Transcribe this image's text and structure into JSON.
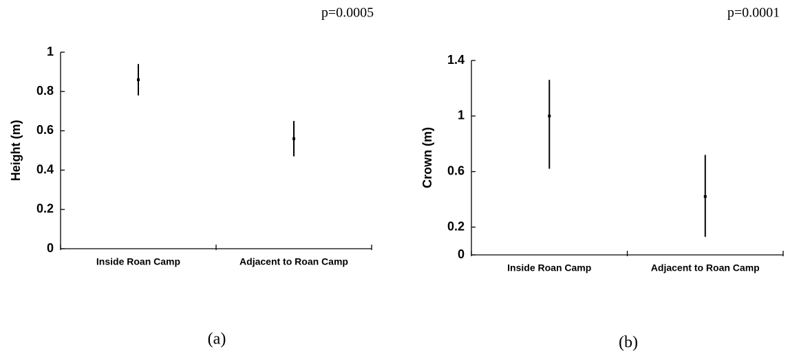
{
  "chart_data": [
    {
      "type": "errorbar",
      "panel_label": "(a)",
      "annotation": "p=0.0005",
      "ylabel": "Height (m)",
      "categories": [
        "Inside Roan Camp",
        "Adjacent to Roan Camp"
      ],
      "series": [
        {
          "color": "#000000",
          "values": [
            0.86,
            0.56
          ],
          "lower": [
            0.78,
            0.47
          ],
          "upper": [
            0.94,
            0.65
          ]
        }
      ],
      "ylim": [
        0,
        1
      ],
      "yticks": [
        0,
        0.2,
        0.4,
        0.6,
        0.8,
        1
      ]
    },
    {
      "type": "errorbar",
      "panel_label": "(b)",
      "annotation": "p=0.0001",
      "ylabel": "Crown (m)",
      "categories": [
        "Inside Roan Camp",
        "Adjacent to Roan Camp"
      ],
      "series": [
        {
          "color": "#000000",
          "values": [
            1.0,
            0.42
          ],
          "lower": [
            0.62,
            0.13
          ],
          "upper": [
            1.26,
            0.72
          ]
        }
      ],
      "ylim": [
        0,
        1.4
      ],
      "yticks": [
        0,
        0.2,
        0.6,
        1,
        1.4
      ]
    }
  ]
}
